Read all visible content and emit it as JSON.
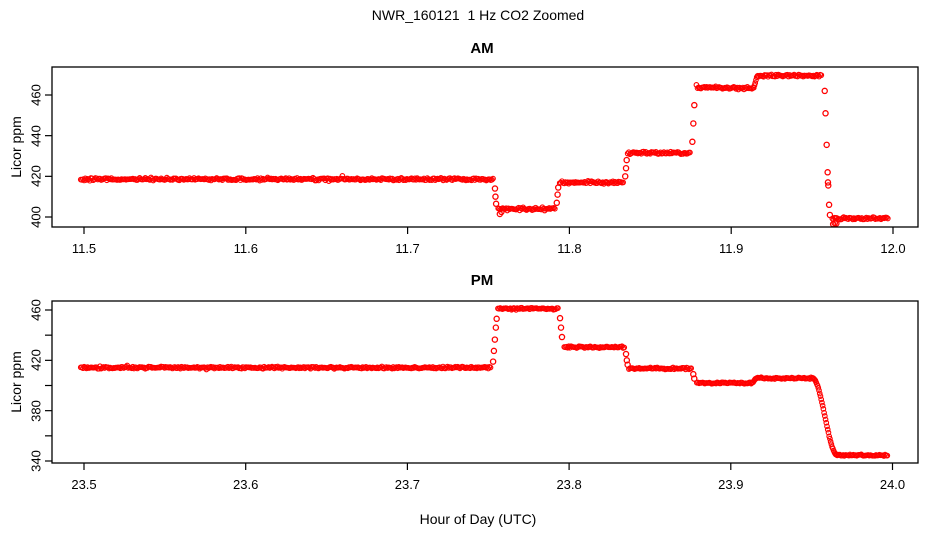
{
  "title": "NWR_160121  1 Hz CO2 Zoomed",
  "xlabel": "Hour of Day (UTC)",
  "point_color": "#ff0000",
  "axis_color": "#000000",
  "chart_data": [
    {
      "type": "scatter",
      "panel": "AM",
      "title": "AM",
      "ylabel": "Licor ppm",
      "marker": "open-circle",
      "color": "#ff0000",
      "grid": false,
      "xlim": [
        11.48,
        12.02
      ],
      "ylim": [
        395,
        474
      ],
      "xticks": [
        {
          "v": 11.5,
          "label": "11.5"
        },
        {
          "v": 11.6,
          "label": "11.6"
        },
        {
          "v": 11.7,
          "label": "11.7"
        },
        {
          "v": 11.8,
          "label": "11.8"
        },
        {
          "v": 11.9,
          "label": "11.9"
        },
        {
          "v": 12.0,
          "label": "12.0"
        }
      ],
      "yticks": [
        {
          "v": 400,
          "label": "400"
        },
        {
          "v": 420,
          "label": "420"
        },
        {
          "v": 440,
          "label": "440"
        },
        {
          "v": 460,
          "label": "460"
        }
      ],
      "segments": [
        {
          "t0": 11.498,
          "t1": 11.753,
          "value": 418.6,
          "jitter": 0.8
        },
        {
          "t0": 11.756,
          "t1": 11.7915,
          "value": 404.0,
          "jitter": 0.9
        },
        {
          "t0": 11.794,
          "t1": 11.8335,
          "value": 417.0,
          "jitter": 0.8
        },
        {
          "t0": 11.836,
          "t1": 11.875,
          "value": 431.5,
          "jitter": 0.8
        },
        {
          "t0": 11.8785,
          "t1": 11.9135,
          "value": 463.5,
          "jitter": 0.8
        },
        {
          "t0": 11.9165,
          "t1": 11.956,
          "value": 469.5,
          "jitter": 0.9
        },
        {
          "t0": 11.9625,
          "t1": 11.997,
          "value": 399.3,
          "jitter": 0.8
        }
      ],
      "ramps": [
        {
          "t0": 11.9135,
          "t1": 11.9165,
          "v0": 463.5,
          "v1": 469.5
        }
      ],
      "transition_points": [
        {
          "t": 11.754,
          "v": 414.0
        },
        {
          "t": 11.7543,
          "v": 410.0
        },
        {
          "t": 11.7547,
          "v": 406.5
        },
        {
          "t": 11.757,
          "v": 401.5
        },
        {
          "t": 11.758,
          "v": 402.5
        },
        {
          "t": 11.7922,
          "v": 407.0
        },
        {
          "t": 11.7927,
          "v": 411.0
        },
        {
          "t": 11.7931,
          "v": 414.5
        },
        {
          "t": 11.8345,
          "v": 420.0
        },
        {
          "t": 11.835,
          "v": 424.0
        },
        {
          "t": 11.8354,
          "v": 428.0
        },
        {
          "t": 11.876,
          "v": 437.0
        },
        {
          "t": 11.8766,
          "v": 446.0
        },
        {
          "t": 11.8772,
          "v": 455.0
        },
        {
          "t": 11.9578,
          "v": 462.0
        },
        {
          "t": 11.9583,
          "v": 451.0
        },
        {
          "t": 11.959,
          "v": 435.5
        },
        {
          "t": 11.9596,
          "v": 422.0
        },
        {
          "t": 11.9598,
          "v": 417.0
        },
        {
          "t": 11.96,
          "v": 415.5
        },
        {
          "t": 11.9605,
          "v": 406.0
        },
        {
          "t": 11.961,
          "v": 401.0
        },
        {
          "t": 11.963,
          "v": 396.5
        },
        {
          "t": 11.964,
          "v": 397.0
        },
        {
          "t": 11.965,
          "v": 396.8
        }
      ]
    },
    {
      "type": "scatter",
      "panel": "PM",
      "title": "PM",
      "ylabel": "Licor ppm",
      "marker": "open-circle",
      "color": "#ff0000",
      "grid": false,
      "xlim": [
        23.48,
        24.02
      ],
      "ylim": [
        338,
        467
      ],
      "xticks": [
        {
          "v": 23.5,
          "label": "23.5"
        },
        {
          "v": 23.6,
          "label": "23.6"
        },
        {
          "v": 23.7,
          "label": "23.7"
        },
        {
          "v": 23.8,
          "label": "23.8"
        },
        {
          "v": 23.9,
          "label": "23.9"
        },
        {
          "v": 24.0,
          "label": "24.0"
        }
      ],
      "yticks": [
        {
          "v": 340,
          "label": "340"
        },
        {
          "v": 360,
          "label": ""
        },
        {
          "v": 380,
          "label": "380"
        },
        {
          "v": 400,
          "label": ""
        },
        {
          "v": 420,
          "label": "420"
        },
        {
          "v": 440,
          "label": ""
        },
        {
          "v": 460,
          "label": "460"
        }
      ],
      "segments": [
        {
          "t0": 23.498,
          "t1": 23.752,
          "value": 414.2,
          "jitter": 1.0
        },
        {
          "t0": 23.756,
          "t1": 23.7935,
          "value": 461.0,
          "jitter": 1.0
        },
        {
          "t0": 23.797,
          "t1": 23.8345,
          "value": 430.5,
          "jitter": 0.9
        },
        {
          "t0": 23.837,
          "t1": 23.876,
          "value": 413.5,
          "jitter": 0.9
        },
        {
          "t0": 23.879,
          "t1": 23.913,
          "value": 402.0,
          "jitter": 0.9
        },
        {
          "t0": 23.916,
          "t1": 23.9505,
          "value": 405.8,
          "jitter": 0.9
        },
        {
          "t0": 23.966,
          "t1": 23.997,
          "value": 344.6,
          "jitter": 0.8
        }
      ],
      "ramps": [
        {
          "t0": 23.913,
          "t1": 23.916,
          "v0": 402.0,
          "v1": 405.8
        },
        {
          "t0": 23.9505,
          "t1": 23.966,
          "v0": 405.8,
          "v1": 344.6
        }
      ],
      "transition_points": [
        {
          "t": 23.753,
          "v": 419.0
        },
        {
          "t": 23.7535,
          "v": 427.5
        },
        {
          "t": 23.7541,
          "v": 436.5
        },
        {
          "t": 23.7547,
          "v": 446.0
        },
        {
          "t": 23.7552,
          "v": 453.0
        },
        {
          "t": 23.7944,
          "v": 453.5
        },
        {
          "t": 23.795,
          "v": 446.0
        },
        {
          "t": 23.7956,
          "v": 438.5
        },
        {
          "t": 23.8352,
          "v": 425.0
        },
        {
          "t": 23.8357,
          "v": 420.0
        },
        {
          "t": 23.8362,
          "v": 416.5
        },
        {
          "t": 23.8768,
          "v": 409.0
        },
        {
          "t": 23.8774,
          "v": 405.5
        }
      ]
    }
  ]
}
